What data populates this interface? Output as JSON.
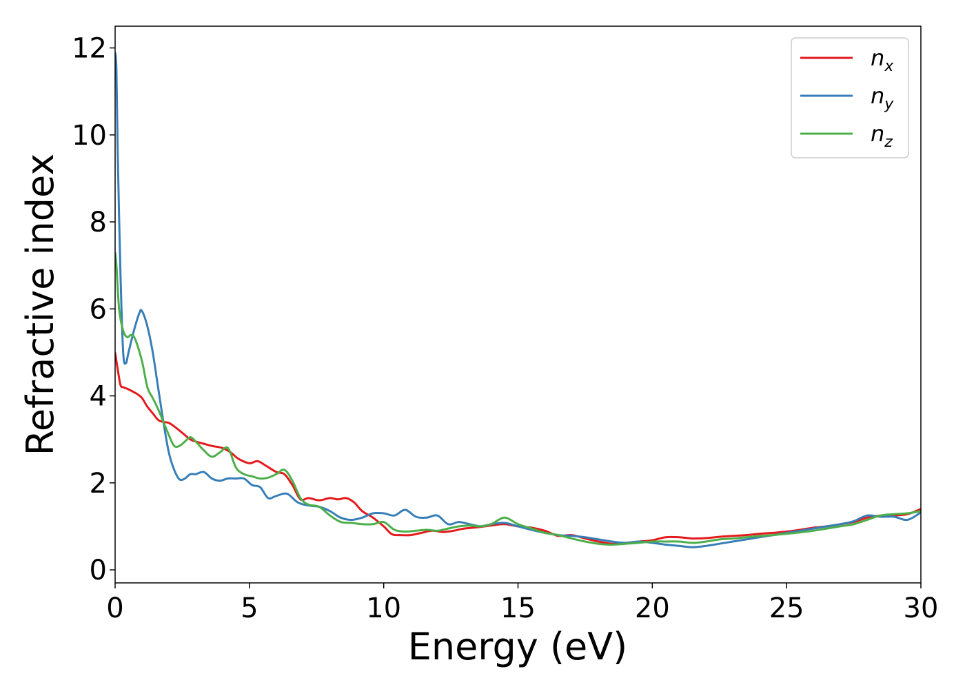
{
  "chart_data": {
    "type": "line",
    "xlabel": "Energy (eV)",
    "ylabel": "Refractive index",
    "xlim": [
      0,
      30
    ],
    "ylim": [
      -0.3,
      12.5
    ],
    "xticks": [
      "0",
      "5",
      "10",
      "15",
      "20",
      "25",
      "30"
    ],
    "yticks": [
      "0",
      "2",
      "4",
      "6",
      "8",
      "10",
      "12"
    ],
    "grid": false,
    "legend_position": "top-right",
    "series": [
      {
        "name": "n",
        "subscript": "x",
        "color": "#e41a1c",
        "x": [
          0,
          0.1,
          0.2,
          0.3,
          0.5,
          0.8,
          1.0,
          1.2,
          1.4,
          1.6,
          1.8,
          2.0,
          2.2,
          2.5,
          2.8,
          3.0,
          3.3,
          3.6,
          4.0,
          4.3,
          4.6,
          5.0,
          5.3,
          5.6,
          6.0,
          6.3,
          6.6,
          6.9,
          7.2,
          7.6,
          8.0,
          8.3,
          8.6,
          8.9,
          9.2,
          9.6,
          10.0,
          10.3,
          10.6,
          11.0,
          11.4,
          11.8,
          12.2,
          12.6,
          13.0,
          13.5,
          14.0,
          14.5,
          15.0,
          15.5,
          16.0,
          16.5,
          17.0,
          17.5,
          18.0,
          18.5,
          19.0,
          19.5,
          20.0,
          20.5,
          21.0,
          21.5,
          22.0,
          22.5,
          23.0,
          23.5,
          24.0,
          24.5,
          25.0,
          25.5,
          26.0,
          26.5,
          27.0,
          27.5,
          28.0,
          28.5,
          29.0,
          29.5,
          30.0
        ],
        "y": [
          5.0,
          4.6,
          4.25,
          4.2,
          4.15,
          4.05,
          3.95,
          3.75,
          3.6,
          3.45,
          3.4,
          3.38,
          3.3,
          3.15,
          3.0,
          2.95,
          2.9,
          2.85,
          2.8,
          2.7,
          2.55,
          2.45,
          2.5,
          2.4,
          2.25,
          2.2,
          1.95,
          1.62,
          1.65,
          1.6,
          1.65,
          1.62,
          1.65,
          1.55,
          1.35,
          1.2,
          1.0,
          0.82,
          0.8,
          0.8,
          0.85,
          0.9,
          0.87,
          0.9,
          0.95,
          0.98,
          1.02,
          1.05,
          1.0,
          0.97,
          0.9,
          0.78,
          0.8,
          0.72,
          0.65,
          0.6,
          0.62,
          0.65,
          0.68,
          0.75,
          0.75,
          0.72,
          0.73,
          0.76,
          0.78,
          0.8,
          0.83,
          0.85,
          0.88,
          0.92,
          0.97,
          1.0,
          1.05,
          1.1,
          1.2,
          1.25,
          1.25,
          1.28,
          1.4
        ]
      },
      {
        "name": "n",
        "subscript": "y",
        "color": "#377eb8",
        "x": [
          0,
          0.05,
          0.1,
          0.2,
          0.3,
          0.4,
          0.5,
          0.7,
          0.9,
          1.0,
          1.2,
          1.4,
          1.6,
          1.8,
          2.0,
          2.2,
          2.4,
          2.6,
          2.8,
          3.0,
          3.3,
          3.6,
          3.9,
          4.2,
          4.5,
          4.8,
          5.1,
          5.4,
          5.7,
          6.0,
          6.4,
          6.8,
          7.2,
          7.6,
          8.0,
          8.4,
          8.8,
          9.2,
          9.6,
          10.0,
          10.4,
          10.8,
          11.2,
          11.6,
          12.0,
          12.4,
          12.8,
          13.2,
          13.6,
          14.0,
          14.5,
          15.0,
          15.5,
          16.0,
          16.5,
          17.0,
          17.5,
          18.0,
          18.5,
          19.0,
          19.5,
          20.0,
          20.5,
          21.0,
          21.5,
          22.0,
          22.5,
          23.0,
          23.5,
          24.0,
          24.5,
          25.0,
          25.5,
          26.0,
          26.5,
          27.0,
          27.5,
          28.0,
          28.5,
          29.0,
          29.5,
          30.0
        ],
        "y": [
          11.9,
          11.5,
          9.5,
          6.8,
          5.0,
          4.75,
          5.0,
          5.5,
          5.9,
          5.95,
          5.6,
          5.0,
          4.2,
          3.4,
          2.7,
          2.3,
          2.08,
          2.1,
          2.2,
          2.2,
          2.25,
          2.1,
          2.05,
          2.1,
          2.1,
          2.1,
          1.95,
          1.9,
          1.65,
          1.7,
          1.75,
          1.55,
          1.48,
          1.45,
          1.35,
          1.2,
          1.15,
          1.2,
          1.3,
          1.3,
          1.25,
          1.38,
          1.22,
          1.2,
          1.25,
          1.05,
          1.1,
          1.05,
          1.0,
          1.05,
          1.08,
          1.0,
          0.92,
          0.85,
          0.8,
          0.78,
          0.75,
          0.7,
          0.65,
          0.62,
          0.65,
          0.62,
          0.58,
          0.55,
          0.52,
          0.55,
          0.6,
          0.65,
          0.7,
          0.75,
          0.8,
          0.85,
          0.9,
          0.95,
          1.0,
          1.05,
          1.12,
          1.25,
          1.22,
          1.22,
          1.15,
          1.32
        ]
      },
      {
        "name": "n",
        "subscript": "z",
        "color": "#4daf4a",
        "x": [
          0,
          0.05,
          0.15,
          0.3,
          0.45,
          0.6,
          0.75,
          1.0,
          1.2,
          1.4,
          1.6,
          1.8,
          2.0,
          2.2,
          2.4,
          2.6,
          2.8,
          3.0,
          3.3,
          3.6,
          3.9,
          4.2,
          4.5,
          4.8,
          5.1,
          5.4,
          5.7,
          6.0,
          6.3,
          6.6,
          6.9,
          7.2,
          7.6,
          8.0,
          8.4,
          8.8,
          9.2,
          9.6,
          10.0,
          10.4,
          10.8,
          11.2,
          11.6,
          12.0,
          12.4,
          12.8,
          13.2,
          13.6,
          14.0,
          14.5,
          15.0,
          15.5,
          16.0,
          16.5,
          17.0,
          17.5,
          18.0,
          18.5,
          19.0,
          19.5,
          20.0,
          20.5,
          21.0,
          21.5,
          22.0,
          22.5,
          23.0,
          23.5,
          24.0,
          24.5,
          25.0,
          25.5,
          26.0,
          26.5,
          27.0,
          27.5,
          28.0,
          28.5,
          29.0,
          29.5,
          30.0
        ],
        "y": [
          7.3,
          7.0,
          6.0,
          5.5,
          5.35,
          5.4,
          5.3,
          4.8,
          4.2,
          3.95,
          3.7,
          3.4,
          3.1,
          2.85,
          2.85,
          2.95,
          3.05,
          2.95,
          2.75,
          2.6,
          2.7,
          2.8,
          2.35,
          2.2,
          2.15,
          2.1,
          2.12,
          2.2,
          2.3,
          2.05,
          1.65,
          1.5,
          1.45,
          1.25,
          1.1,
          1.08,
          1.05,
          1.05,
          1.1,
          0.92,
          0.88,
          0.9,
          0.92,
          0.9,
          0.95,
          1.0,
          1.02,
          1.0,
          1.05,
          1.2,
          1.05,
          0.95,
          0.85,
          0.8,
          0.72,
          0.65,
          0.6,
          0.58,
          0.6,
          0.62,
          0.65,
          0.65,
          0.65,
          0.62,
          0.65,
          0.7,
          0.72,
          0.75,
          0.78,
          0.8,
          0.83,
          0.86,
          0.9,
          0.95,
          1.0,
          1.05,
          1.15,
          1.25,
          1.28,
          1.3,
          1.35
        ]
      }
    ]
  }
}
